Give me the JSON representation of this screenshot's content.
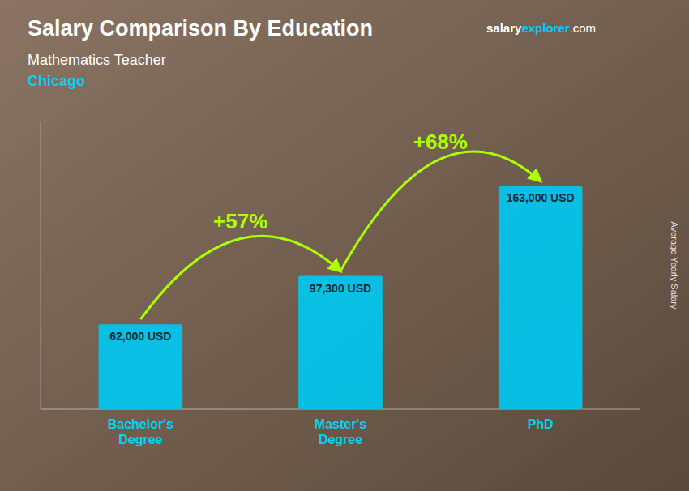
{
  "chart_data": {
    "type": "bar",
    "title": "Salary Comparison By Education",
    "subtitle": "Mathematics Teacher",
    "city": "Chicago",
    "y_label": "Average Yearly Salary",
    "categories": [
      "Bachelor's\nDegree",
      "Master's\nDegree",
      "PhD"
    ],
    "values": [
      62000,
      97300,
      163000
    ],
    "value_labels": [
      "62,000 USD",
      "97,300 USD",
      "163,000 USD"
    ],
    "data_labels": true,
    "annotations": [
      "+57%",
      "+68%"
    ],
    "source": [
      "salary",
      "explorer",
      ".com"
    ],
    "color": "#00c8f0",
    "ylim": [
      0,
      210000
    ],
    "tick_labels": false,
    "grid": false
  }
}
